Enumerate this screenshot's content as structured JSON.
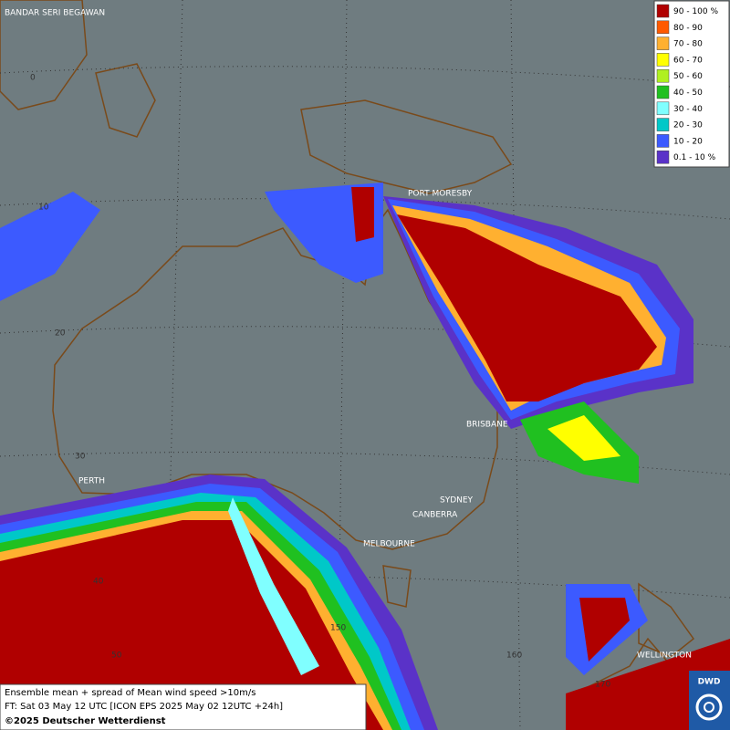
{
  "map": {
    "cities": [
      "BANDAR SERI BEGAWAN",
      "PORT MORESBY",
      "BRISBANE",
      "PERTH",
      "SYDNEY",
      "CANBERRA",
      "MELBOURNE",
      "WELLINGTON"
    ],
    "grid_labels": [
      "0",
      "10",
      "20",
      "30",
      "40",
      "50",
      "150",
      "160",
      "170"
    ],
    "legend": [
      {
        "label": "90 - 100 %",
        "color": "#b00000"
      },
      {
        "label": "80 - 90",
        "color": "#ff5a00"
      },
      {
        "label": "70 - 80",
        "color": "#ffb030"
      },
      {
        "label": "60 - 70",
        "color": "#ffff00"
      },
      {
        "label": "50 - 60",
        "color": "#b0f020"
      },
      {
        "label": "40 - 50",
        "color": "#20c020"
      },
      {
        "label": "30 - 40",
        "color": "#80ffff"
      },
      {
        "label": "20 - 30",
        "color": "#00c8c8"
      },
      {
        "label": "10 - 20",
        "color": "#3c5aff"
      },
      {
        "label": "0.1 - 10 %",
        "color": "#5a32c8"
      }
    ],
    "footer": [
      "Ensemble mean + spread of Mean wind speed >10m/s",
      "FT: Sat 03 May 12 UTC [ICON EPS 2025 May 02 12UTC +24h]",
      "©2025 Deutscher Wetterdienst"
    ],
    "logo": "DWD"
  }
}
